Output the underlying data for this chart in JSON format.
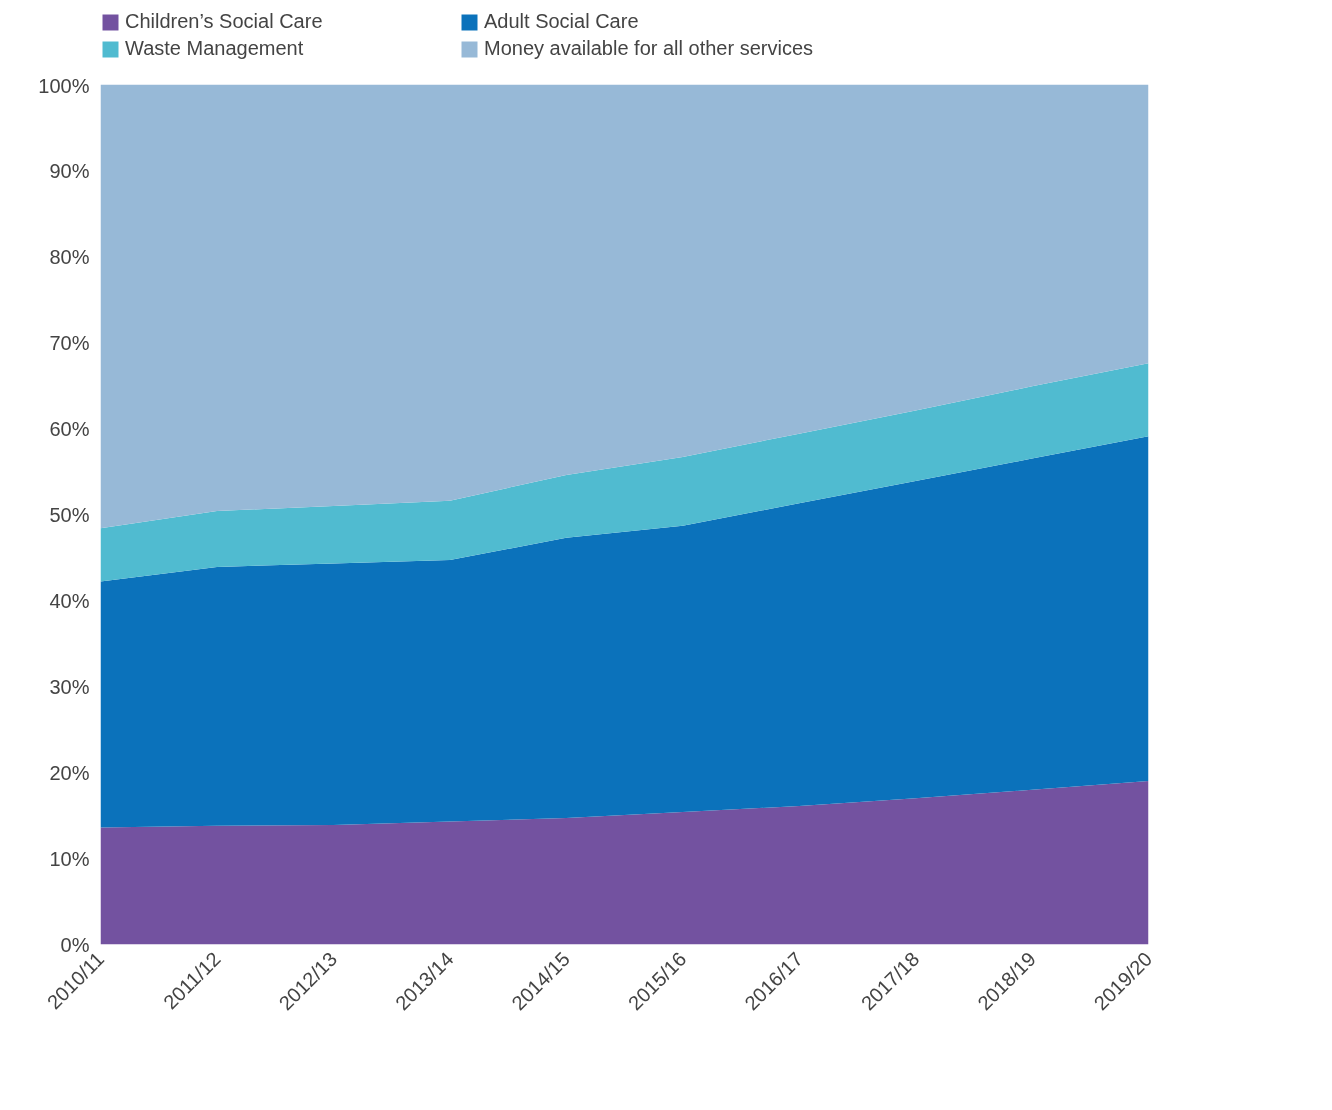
{
  "chart_data": {
    "type": "area",
    "stacked": true,
    "categories": [
      "2010/11",
      "2011/12",
      "2012/13",
      "2013/14",
      "2014/15",
      "2015/16",
      "2016/17",
      "2017/18",
      "2018/19",
      "2019/20"
    ],
    "series": [
      {
        "name": "Children’s Social Care",
        "color": "#7352a0",
        "values": [
          13.6,
          13.8,
          13.9,
          14.3,
          14.7,
          15.4,
          16.1,
          17.0,
          18.0,
          19.0
        ]
      },
      {
        "name": "Adult Social Care",
        "color": "#0b72bb",
        "values": [
          28.6,
          30.1,
          30.4,
          30.4,
          32.6,
          33.3,
          35.2,
          36.9,
          38.5,
          40.1
        ]
      },
      {
        "name": "Waste Management",
        "color": "#50bbd0",
        "values": [
          6.2,
          6.5,
          6.7,
          6.9,
          7.3,
          8.0,
          8.1,
          8.2,
          8.4,
          8.5
        ]
      },
      {
        "name": "Money available for all other services",
        "color": "#97b9d7",
        "values": [
          51.6,
          49.6,
          49.0,
          48.4,
          45.4,
          43.3,
          40.6,
          37.9,
          35.1,
          32.4
        ]
      }
    ],
    "ylim": [
      0,
      100
    ],
    "yticks": [
      {
        "value": 0,
        "label": "0%"
      },
      {
        "value": 10,
        "label": "10%"
      },
      {
        "value": 20,
        "label": "20%"
      },
      {
        "value": 30,
        "label": "30%"
      },
      {
        "value": 40,
        "label": "40%"
      },
      {
        "value": 50,
        "label": "50%"
      },
      {
        "value": 60,
        "label": "60%"
      },
      {
        "value": 70,
        "label": "70%"
      },
      {
        "value": 80,
        "label": "80%"
      },
      {
        "value": 90,
        "label": "90%"
      },
      {
        "value": 100,
        "label": "100%"
      }
    ],
    "legend": "top",
    "grid": false
  }
}
